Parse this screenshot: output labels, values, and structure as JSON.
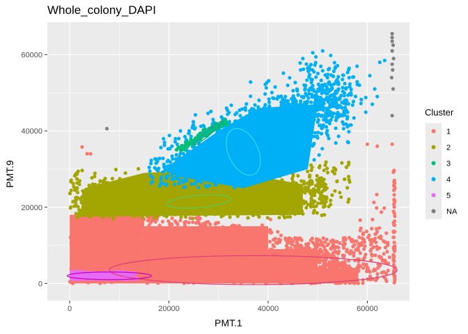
{
  "chart_data": {
    "type": "scatter",
    "title": "Whole_colony_DAPI",
    "xlabel": "PMT.1",
    "ylabel": "PMT.9",
    "xlim": [
      -4500,
      68500
    ],
    "ylim": [
      -4500,
      68500
    ],
    "x_ticks": [
      0,
      20000,
      40000,
      60000
    ],
    "y_ticks": [
      0,
      20000,
      40000,
      60000
    ],
    "x_tick_labels": [
      "0",
      "20000",
      "40000",
      "60000"
    ],
    "y_tick_labels": [
      "0",
      "20000",
      "40000",
      "60000"
    ],
    "grid": true,
    "legend": {
      "title": "Cluster",
      "position": "right",
      "entries": [
        {
          "label": "1",
          "color": "#F8766D"
        },
        {
          "label": "2",
          "color": "#A3A500"
        },
        {
          "label": "3",
          "color": "#00BF7D"
        },
        {
          "label": "4",
          "color": "#00B0F6"
        },
        {
          "label": "5",
          "color": "#E76BF3"
        },
        {
          "label": "NA",
          "color": "#7F7F7F"
        }
      ]
    },
    "clusters": [
      {
        "name": "1",
        "color": "#F8766D",
        "region": {
          "x": [
            0,
            65500
          ],
          "y_low": [
            0,
            0
          ],
          "y_high": [
            18000,
            14000
          ]
        }
      },
      {
        "name": "2",
        "color": "#A3A500",
        "region": {
          "x": [
            0,
            48000
          ],
          "center": [
            22000,
            22500
          ]
        }
      },
      {
        "name": "3",
        "color": "#00BF7D",
        "segment": [
          [
            22000,
            35000
          ],
          [
            31500,
            42500
          ]
        ]
      },
      {
        "name": "4",
        "color": "#00B0F6",
        "center": [
          38000,
          36000
        ]
      },
      {
        "name": "5",
        "color": "#E76BF3",
        "center": [
          7000,
          2000
        ]
      },
      {
        "name": "NA",
        "color": "#7F7F7F",
        "points": [
          [
            7500,
            40600
          ],
          [
            65000,
            65500
          ],
          [
            65000,
            64500
          ],
          [
            65000,
            63500
          ],
          [
            65200,
            62500
          ],
          [
            65000,
            61000
          ],
          [
            65300,
            59000
          ],
          [
            65000,
            57500
          ],
          [
            65100,
            56000
          ],
          [
            64900,
            54000
          ],
          [
            65200,
            51000
          ],
          [
            65000,
            44000
          ]
        ]
      }
    ],
    "ellipses": [
      {
        "cluster": "1",
        "color": "#F8766D",
        "cx": 37000,
        "cy": 3500,
        "rx": 29000,
        "ry": 3800,
        "angle": 0
      },
      {
        "cluster": "2",
        "color": "#A3A500",
        "cx": 26000,
        "cy": 21500,
        "rx": 6500,
        "ry": 1600,
        "angle": 5
      },
      {
        "cluster": "3",
        "color": "#00BF7D",
        "cx": 28000,
        "cy": 39500,
        "rx": 3800,
        "ry": 600,
        "angle": 40
      },
      {
        "cluster": "4",
        "color": "#00B0F6",
        "cx": 35000,
        "cy": 34500,
        "rx": 3000,
        "ry": 6500,
        "angle": 25
      },
      {
        "cluster": "5",
        "color": "#E76BF3",
        "cx": 8000,
        "cy": 2000,
        "rx": 8500,
        "ry": 1000,
        "angle": 0
      }
    ]
  }
}
